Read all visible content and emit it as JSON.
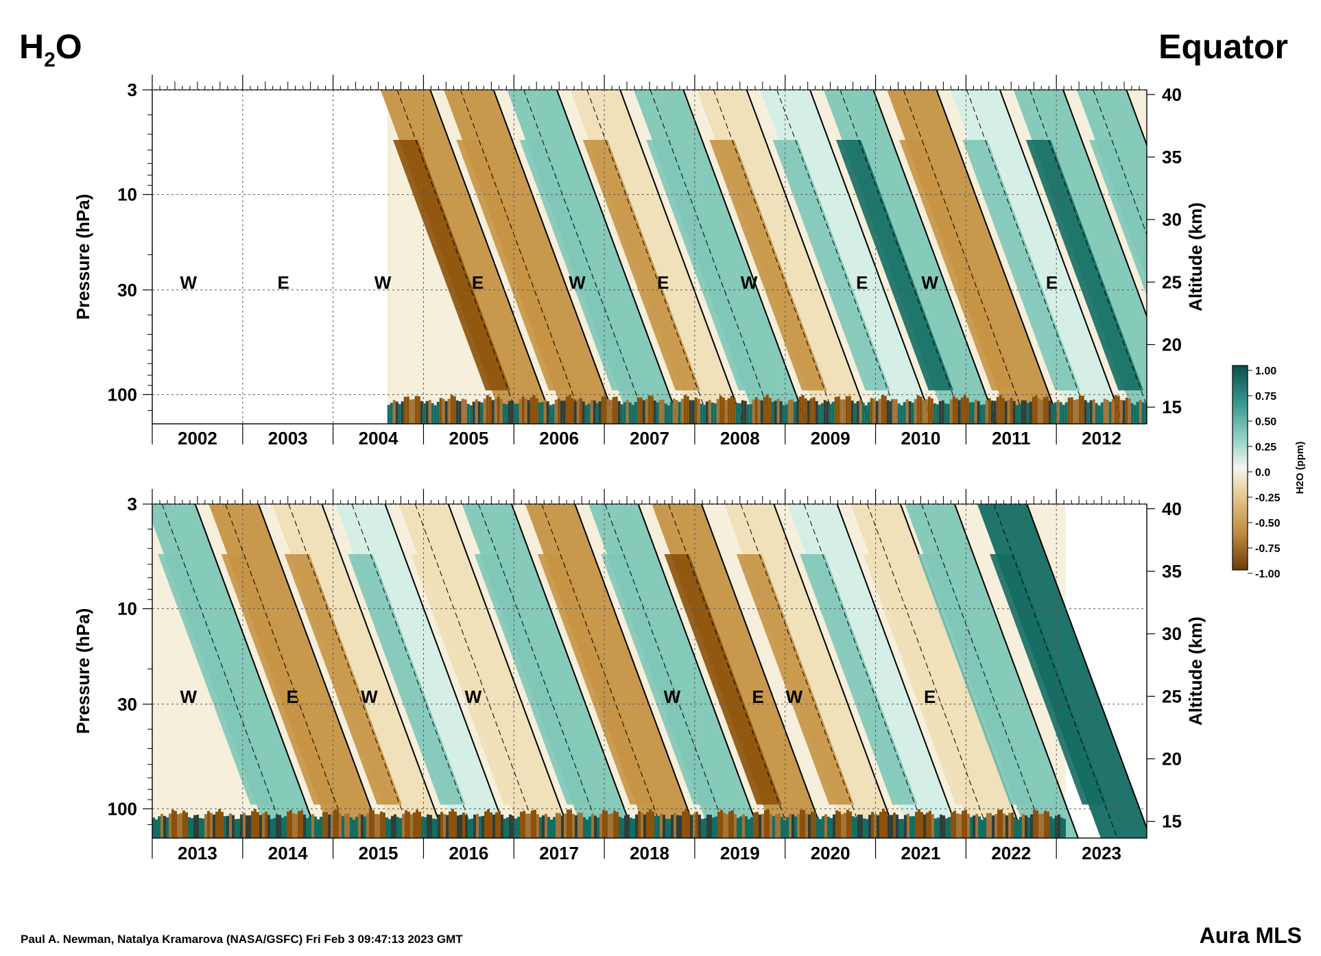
{
  "header": {
    "title_main": "H",
    "title_sub": "2",
    "title_tail": "O",
    "region": "Equator"
  },
  "footer": {
    "credit": "Paul A. Newman, Natalya Kramarova (NASA/GSFC) Fri Feb  3 09:47:13 2023 GMT",
    "instrument": "Aura MLS"
  },
  "colors": {
    "neg_strong": "#8c510a",
    "neg_mid": "#c59344",
    "neg_light": "#efdfb7",
    "neutral": "#f6efdc",
    "pos_light": "#d3eee7",
    "pos_mid": "#7fc7b7",
    "pos_strong": "#146d63"
  },
  "chart_data": [
    {
      "type": "heatmap",
      "panel": "top",
      "xlabel": "",
      "ylabel": "Pressure (hPa)",
      "ylabel_right": "Altitude (km)",
      "x_ticks": [
        "2002",
        "2003",
        "2004",
        "2005",
        "2006",
        "2007",
        "2008",
        "2009",
        "2010",
        "2011",
        "2012"
      ],
      "pressure_ticks": [
        "3",
        "10",
        "30",
        "100"
      ],
      "altitude_ticks": [
        "40",
        "35",
        "30",
        "25",
        "20",
        "15"
      ],
      "data_start": 2004.6,
      "data_end": 2013.0,
      "qbo_labels": [
        {
          "text": "W",
          "x": 2002.4
        },
        {
          "text": "E",
          "x": 2003.45
        },
        {
          "text": "W",
          "x": 2004.55
        },
        {
          "text": "E",
          "x": 2005.6
        },
        {
          "text": "W",
          "x": 2006.7
        },
        {
          "text": "E",
          "x": 2007.65
        },
        {
          "text": "W",
          "x": 2008.6
        },
        {
          "text": "E",
          "x": 2009.85
        },
        {
          "text": "W",
          "x": 2010.6
        },
        {
          "text": "E",
          "x": 2011.95
        }
      ],
      "anomaly_bands": [
        {
          "x": 2004.8,
          "value": -0.5
        },
        {
          "x": 2005.5,
          "value": -0.3
        },
        {
          "x": 2006.2,
          "value": 0.35
        },
        {
          "x": 2006.9,
          "value": -0.25
        },
        {
          "x": 2007.6,
          "value": 0.3
        },
        {
          "x": 2008.3,
          "value": -0.2
        },
        {
          "x": 2009.0,
          "value": 0.25
        },
        {
          "x": 2009.7,
          "value": 0.45
        },
        {
          "x": 2010.4,
          "value": -0.3
        },
        {
          "x": 2011.1,
          "value": 0.2
        },
        {
          "x": 2011.8,
          "value": 0.5
        },
        {
          "x": 2012.5,
          "value": 0.3
        }
      ]
    },
    {
      "type": "heatmap",
      "panel": "bottom",
      "xlabel": "",
      "ylabel": "Pressure (hPa)",
      "ylabel_right": "Altitude (km)",
      "x_ticks": [
        "2013",
        "2014",
        "2015",
        "2016",
        "2017",
        "2018",
        "2019",
        "2020",
        "2021",
        "2022",
        "2023"
      ],
      "pressure_ticks": [
        "3",
        "10",
        "30",
        "100"
      ],
      "altitude_ticks": [
        "40",
        "35",
        "30",
        "25",
        "20",
        "15"
      ],
      "data_start": 2013.0,
      "data_end": 2023.1,
      "qbo_labels": [
        {
          "text": "W",
          "x": 2013.4
        },
        {
          "text": "E",
          "x": 2014.55
        },
        {
          "text": "W",
          "x": 2015.4
        },
        {
          "text": "W",
          "x": 2016.55
        },
        {
          "text": "W",
          "x": 2018.75
        },
        {
          "text": "E",
          "x": 2019.7
        },
        {
          "text": "W",
          "x": 2020.1
        },
        {
          "text": "E",
          "x": 2021.6
        }
      ],
      "anomaly_bands": [
        {
          "x": 2013.2,
          "value": 0.3
        },
        {
          "x": 2013.9,
          "value": -0.3
        },
        {
          "x": 2014.6,
          "value": -0.2
        },
        {
          "x": 2015.3,
          "value": 0.25
        },
        {
          "x": 2016.0,
          "value": -0.15
        },
        {
          "x": 2016.7,
          "value": 0.3
        },
        {
          "x": 2017.4,
          "value": -0.3
        },
        {
          "x": 2018.1,
          "value": 0.3
        },
        {
          "x": 2018.8,
          "value": -0.45
        },
        {
          "x": 2019.6,
          "value": -0.2
        },
        {
          "x": 2020.3,
          "value": 0.25
        },
        {
          "x": 2021.0,
          "value": -0.1
        },
        {
          "x": 2021.6,
          "value": 0.3
        },
        {
          "x": 2022.4,
          "value": 0.95
        }
      ]
    }
  ],
  "colorbar": {
    "label": "H2O (ppm)",
    "ticks": [
      "1.00",
      "0.75",
      "0.50",
      "0.25",
      "0.0",
      "-0.25",
      "-0.50",
      "-0.75",
      "-1.00"
    ],
    "range": [
      -1.0,
      1.0
    ]
  }
}
